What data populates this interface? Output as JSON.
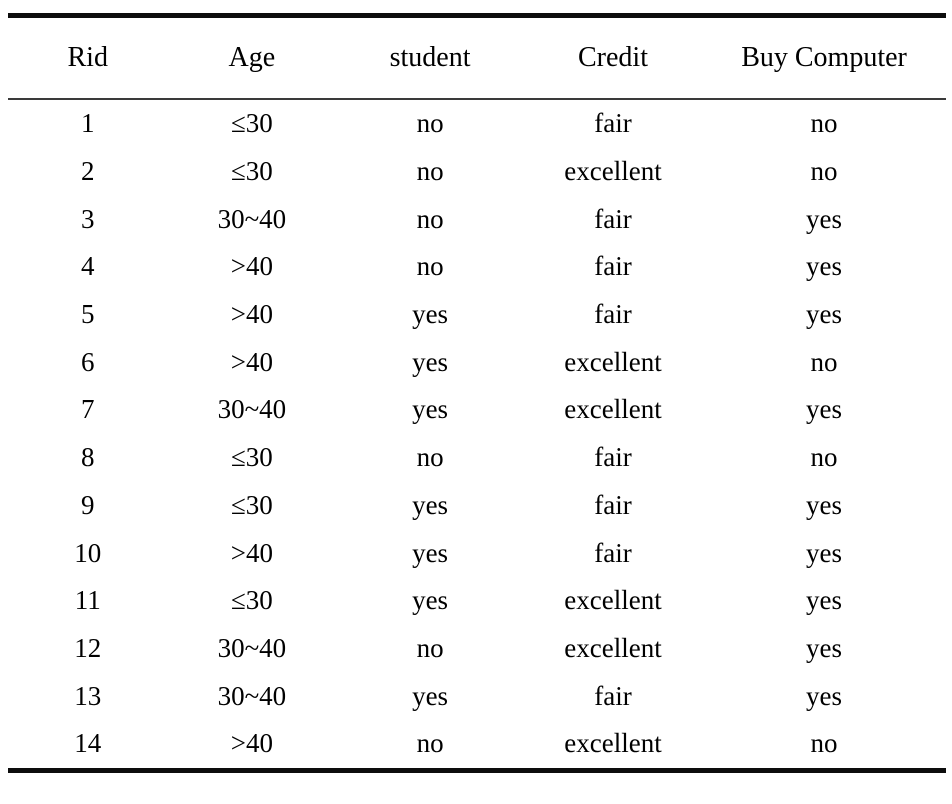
{
  "table": {
    "name": "buy-computer-training-data",
    "columns": [
      "Rid",
      "Age",
      "student",
      "Credit",
      "Buy Computer"
    ],
    "rows": [
      [
        "1",
        "≤30",
        "no",
        "fair",
        "no"
      ],
      [
        "2",
        "≤30",
        "no",
        "excellent",
        "no"
      ],
      [
        "3",
        "30~40",
        "no",
        "fair",
        "yes"
      ],
      [
        "4",
        ">40",
        "no",
        "fair",
        "yes"
      ],
      [
        "5",
        ">40",
        "yes",
        "fair",
        "yes"
      ],
      [
        "6",
        ">40",
        "yes",
        "excellent",
        "no"
      ],
      [
        "7",
        "30~40",
        "yes",
        "excellent",
        "yes"
      ],
      [
        "8",
        "≤30",
        "no",
        "fair",
        "no"
      ],
      [
        "9",
        "≤30",
        "yes",
        "fair",
        "yes"
      ],
      [
        "10",
        ">40",
        "yes",
        "fair",
        "yes"
      ],
      [
        "11",
        "≤30",
        "yes",
        "excellent",
        "yes"
      ],
      [
        "12",
        "30~40",
        "no",
        "excellent",
        "yes"
      ],
      [
        "13",
        "30~40",
        "yes",
        "fair",
        "yes"
      ],
      [
        "14",
        ">40",
        "no",
        "excellent",
        "no"
      ]
    ]
  },
  "colors": {
    "background": "#ffffff",
    "text": "#000000",
    "thick_rule": "#0d0d0d",
    "thin_rule": "#3a3a3a"
  }
}
